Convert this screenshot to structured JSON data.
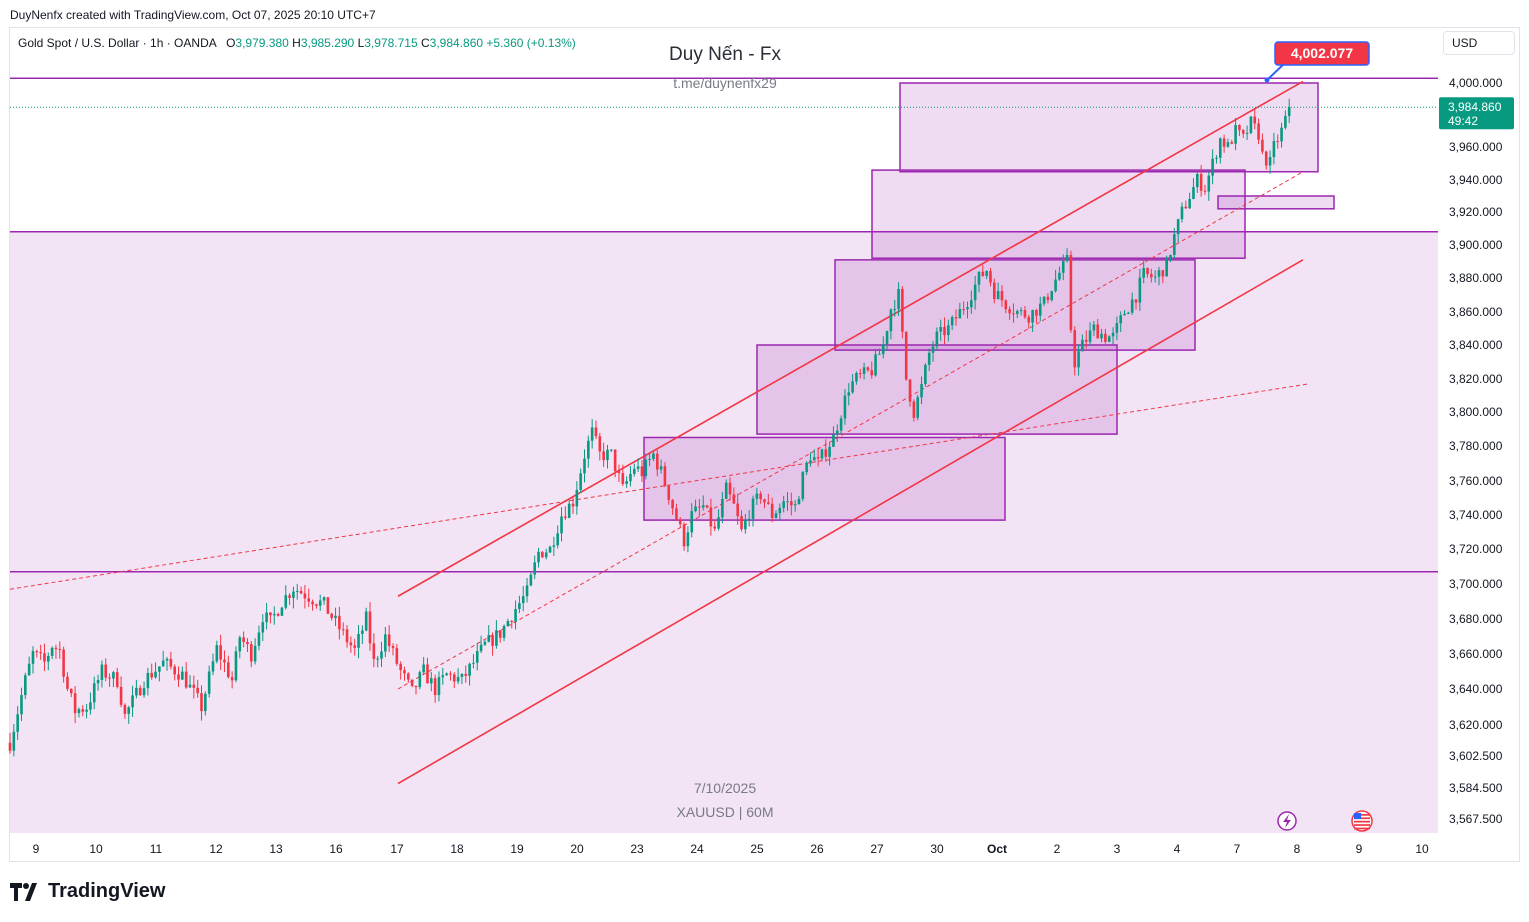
{
  "header": {
    "credit": "DuyNenfx created with TradingView.com, Oct 07, 2025 20:10 UTC+7"
  },
  "legend": {
    "symbol": "Gold Spot / U.S. Dollar · 1h · OANDA",
    "o_label": "O",
    "o_value": "3,979.380",
    "h_label": "H",
    "h_value": "3,985.290",
    "l_label": "L",
    "l_value": "3,978.715",
    "c_label": "C",
    "c_value": "3,984.860",
    "change": "+5.360 (+0.13%)"
  },
  "watermark": {
    "title": "Duy Nến - Fx",
    "subtitle": "t.me/duynenfx29",
    "date": "7/10/2025",
    "ticker": "XAUUSD | 60M"
  },
  "currency_button": "USD",
  "brand": "TradingView",
  "colors": {
    "bull": "#089981",
    "bear": "#f23645",
    "zone": "#9c27b0",
    "channel": "#f23645",
    "price_tag": "#089981",
    "target_tag": "#f23645"
  },
  "icons": [
    "flash-icon",
    "us-flag-icon",
    "tradingview-logo-icon"
  ],
  "chart_data": {
    "type": "candlestick",
    "symbol": "XAUUSD",
    "timeframe": "1h",
    "x_tick_labels": [
      "9",
      "10",
      "11",
      "12",
      "13",
      "16",
      "17",
      "18",
      "19",
      "20",
      "23",
      "24",
      "25",
      "26",
      "27",
      "30",
      "Oct",
      "2",
      "3",
      "4",
      "7",
      "8",
      "9",
      "10"
    ],
    "y_tick_labels": [
      "4,000.000",
      "3,960.000",
      "3,940.000",
      "3,920.000",
      "3,900.000",
      "3,880.000",
      "3,860.000",
      "3,840.000",
      "3,820.000",
      "3,800.000",
      "3,780.000",
      "3,760.000",
      "3,740.000",
      "3,720.000",
      "3,700.000",
      "3,680.000",
      "3,660.000",
      "3,640.000",
      "3,620.000",
      "3,602.500",
      "3,584.500",
      "3,567.500"
    ],
    "ylim": [
      3558,
      4022
    ],
    "last_price": "3,984.860",
    "countdown": "49:42",
    "target_label": "4,002.077",
    "path": [
      [
        0,
        3610
      ],
      [
        4,
        3645
      ],
      [
        6,
        3660
      ],
      [
        9,
        3655
      ],
      [
        11,
        3665
      ],
      [
        13,
        3662
      ],
      [
        15,
        3640
      ],
      [
        17,
        3628
      ],
      [
        20,
        3630
      ],
      [
        24,
        3650
      ],
      [
        28,
        3645
      ],
      [
        30,
        3625
      ],
      [
        35,
        3645
      ],
      [
        40,
        3655
      ],
      [
        45,
        3648
      ],
      [
        50,
        3630
      ],
      [
        54,
        3663
      ],
      [
        58,
        3645
      ],
      [
        60,
        3670
      ],
      [
        63,
        3660
      ],
      [
        66,
        3682
      ],
      [
        68,
        3678
      ],
      [
        71,
        3690
      ],
      [
        74,
        3698
      ],
      [
        78,
        3693
      ],
      [
        82,
        3688
      ],
      [
        88,
        3668
      ],
      [
        90,
        3662
      ],
      [
        93,
        3680
      ],
      [
        95,
        3655
      ],
      [
        98,
        3670
      ],
      [
        102,
        3650
      ],
      [
        105,
        3638
      ],
      [
        108,
        3650
      ],
      [
        111,
        3640
      ],
      [
        114,
        3648
      ],
      [
        118,
        3645
      ],
      [
        121,
        3655
      ],
      [
        124,
        3665
      ],
      [
        128,
        3672
      ],
      [
        132,
        3686
      ],
      [
        135,
        3695
      ],
      [
        138,
        3718
      ],
      [
        141,
        3720
      ],
      [
        144,
        3740
      ],
      [
        147,
        3748
      ],
      [
        150,
        3775
      ],
      [
        152,
        3788
      ],
      [
        154,
        3775
      ],
      [
        157,
        3775
      ],
      [
        160,
        3755
      ],
      [
        163,
        3768
      ],
      [
        165,
        3765
      ],
      [
        168,
        3775
      ],
      [
        170,
        3765
      ],
      [
        172,
        3752
      ],
      [
        174,
        3738
      ],
      [
        176,
        3725
      ],
      [
        178,
        3740
      ],
      [
        181,
        3745
      ],
      [
        184,
        3730
      ],
      [
        187,
        3755
      ],
      [
        189,
        3745
      ],
      [
        191,
        3730
      ],
      [
        193,
        3742
      ],
      [
        196,
        3752
      ],
      [
        199,
        3740
      ],
      [
        202,
        3748
      ],
      [
        205,
        3745
      ],
      [
        207,
        3762
      ],
      [
        209,
        3775
      ],
      [
        211,
        3770
      ],
      [
        213,
        3778
      ],
      [
        215,
        3785
      ],
      [
        217,
        3800
      ],
      [
        219,
        3815
      ],
      [
        221,
        3820
      ],
      [
        225,
        3825
      ],
      [
        228,
        3840
      ],
      [
        230,
        3862
      ],
      [
        232,
        3870
      ],
      [
        234,
        3820
      ],
      [
        236,
        3800
      ],
      [
        238,
        3815
      ],
      [
        240,
        3835
      ],
      [
        242,
        3845
      ],
      [
        245,
        3850
      ],
      [
        248,
        3860
      ],
      [
        250,
        3867
      ],
      [
        253,
        3880
      ],
      [
        255,
        3885
      ],
      [
        257,
        3872
      ],
      [
        260,
        3865
      ],
      [
        263,
        3860
      ],
      [
        266,
        3858
      ],
      [
        270,
        3865
      ],
      [
        272,
        3875
      ],
      [
        274,
        3883
      ],
      [
        276,
        3890
      ],
      [
        277,
        3850
      ],
      [
        278,
        3830
      ],
      [
        280,
        3840
      ],
      [
        283,
        3850
      ],
      [
        286,
        3845
      ],
      [
        288,
        3845
      ],
      [
        291,
        3860
      ],
      [
        294,
        3870
      ],
      [
        296,
        3882
      ],
      [
        299,
        3880
      ],
      [
        302,
        3888
      ],
      [
        304,
        3905
      ],
      [
        306,
        3920
      ],
      [
        308,
        3930
      ],
      [
        310,
        3940
      ],
      [
        312,
        3935
      ],
      [
        314,
        3950
      ],
      [
        316,
        3965
      ],
      [
        318,
        3960
      ],
      [
        320,
        3970
      ],
      [
        322,
        3965
      ],
      [
        324,
        3975
      ],
      [
        326,
        3968
      ],
      [
        327,
        3955
      ],
      [
        329,
        3950
      ],
      [
        330,
        3960
      ],
      [
        332,
        3970
      ],
      [
        334,
        3985
      ]
    ],
    "annotations": {
      "horizontal_levels": [
        4003,
        3908,
        3707
      ],
      "zones": [
        [
          3706,
          3908
        ],
        [
          3737,
          3785
        ],
        [
          3787,
          3840
        ],
        [
          3837,
          3891
        ],
        [
          3892,
          3946
        ],
        [
          3945,
          4000
        ],
        [
          3922,
          3930
        ]
      ],
      "channel_upper": [
        [
          3693,
          4001
        ]
      ],
      "channel_lower": [
        [
          3587,
          3891
        ]
      ]
    }
  }
}
